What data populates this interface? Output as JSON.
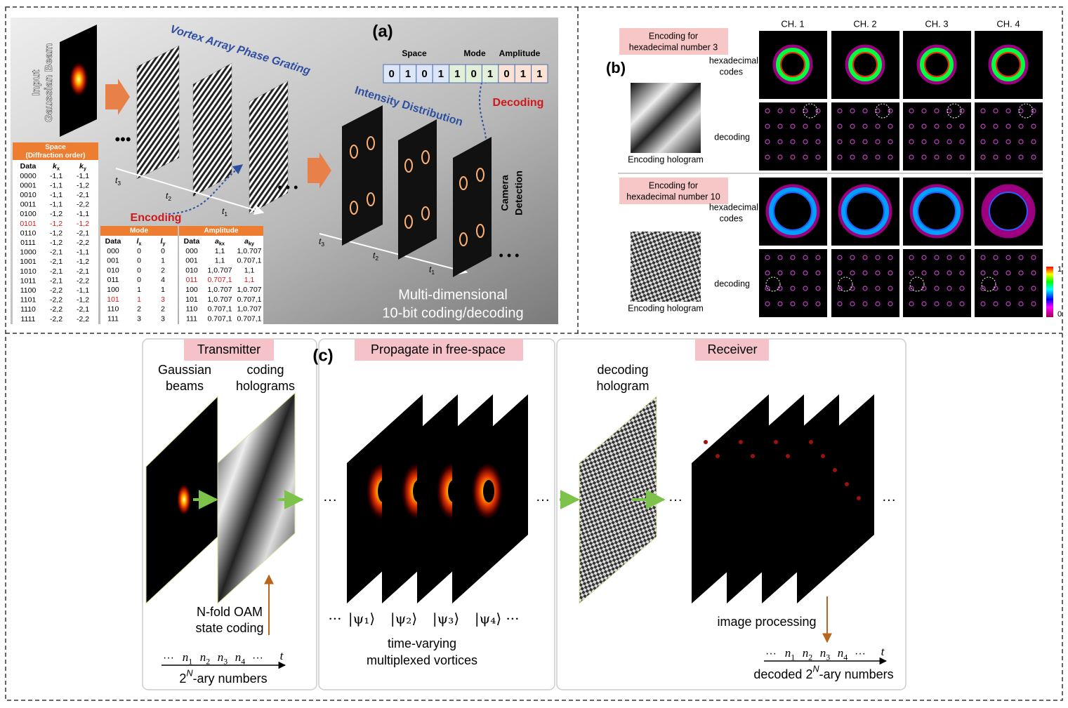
{
  "panel_a": {
    "label": "(a)",
    "input_label": [
      "Input",
      "Gaussian Beam"
    ],
    "grating_title": "Vortex Array Phase Grating",
    "intensity_title": "Intensity Distribution",
    "encoding": "Encoding",
    "decoding": "Decoding",
    "camera": [
      "Camera",
      "Detection"
    ],
    "code_groups": [
      {
        "name": "Space",
        "bits": [
          "0",
          "1",
          "0",
          "1"
        ]
      },
      {
        "name": "Mode",
        "bits": [
          "1",
          "0",
          "1"
        ]
      },
      {
        "name": "Amplitude",
        "bits": [
          "0",
          "1",
          "1"
        ]
      }
    ],
    "axis_left": [
      {
        "base": "t",
        "sub": "3"
      },
      {
        "base": "t",
        "sub": "2"
      },
      {
        "base": "t",
        "sub": "1"
      }
    ],
    "axis_right": [
      {
        "base": "t",
        "sub": "3"
      },
      {
        "base": "t",
        "sub": "2"
      },
      {
        "base": "t",
        "sub": "1"
      }
    ],
    "caption": [
      "Multi-dimensional",
      "10-bit coding/decoding"
    ],
    "space_table": {
      "title": [
        "Space",
        "(Diffraction order)"
      ],
      "header": [
        "Data",
        {
          "base": "k",
          "sub": "x"
        },
        {
          "base": "k",
          "sub": "y"
        }
      ],
      "highlight_row": 5,
      "rows": [
        [
          "0000",
          "-1,1",
          "-1,1"
        ],
        [
          "0001",
          "-1,1",
          "-1,2"
        ],
        [
          "0010",
          "-1,1",
          "-2,1"
        ],
        [
          "0011",
          "-1,1",
          "-2,2"
        ],
        [
          "0100",
          "-1,2",
          "-1,1"
        ],
        [
          "0101",
          "-1,2",
          "-1,2"
        ],
        [
          "0110",
          "-1,2",
          "-2,1"
        ],
        [
          "0111",
          "-1,2",
          "-2,2"
        ],
        [
          "1000",
          "-2,1",
          "-1,1"
        ],
        [
          "1001",
          "-2,1",
          "-1,2"
        ],
        [
          "1010",
          "-2,1",
          "-2,1"
        ],
        [
          "1011",
          "-2,1",
          "-2,2"
        ],
        [
          "1100",
          "-2,2",
          "-1,1"
        ],
        [
          "1101",
          "-2,2",
          "-1,2"
        ],
        [
          "1110",
          "-2,2",
          "-2,1"
        ],
        [
          "1111",
          "-2,2",
          "-2,2"
        ]
      ]
    },
    "mode_table": {
      "title": [
        "Mode"
      ],
      "header": [
        "Data",
        {
          "base": "l",
          "sub": "x"
        },
        {
          "base": "l",
          "sub": "y"
        }
      ],
      "highlight_row": 5,
      "rows": [
        [
          "000",
          "0",
          "0"
        ],
        [
          "001",
          "0",
          "1"
        ],
        [
          "010",
          "0",
          "2"
        ],
        [
          "011",
          "0",
          "4"
        ],
        [
          "100",
          "1",
          "1"
        ],
        [
          "101",
          "1",
          "3"
        ],
        [
          "110",
          "2",
          "2"
        ],
        [
          "111",
          "3",
          "3"
        ]
      ]
    },
    "amplitude_table": {
      "title": [
        "Amplitude"
      ],
      "header": [
        "Data",
        {
          "base": "a",
          "sub": "kx"
        },
        {
          "base": "a",
          "sub": "ky"
        }
      ],
      "highlight_row": 3,
      "rows": [
        [
          "000",
          "1,1",
          "1,0.707"
        ],
        [
          "001",
          "1,1",
          "0.707,1"
        ],
        [
          "010",
          "1,0.707",
          "1,1"
        ],
        [
          "011",
          "0.707,1",
          "1,1"
        ],
        [
          "100",
          "1,0.707",
          "1,0.707"
        ],
        [
          "101",
          "1,0.707",
          "0.707,1"
        ],
        [
          "110",
          "0.707,1",
          "1,0.707"
        ],
        [
          "111",
          "0.707,1",
          "0.707,1"
        ]
      ]
    }
  },
  "panel_b": {
    "label": "(b)",
    "channels": [
      "CH. 1",
      "CH. 2",
      "CH. 3",
      "CH. 4"
    ],
    "rows": [
      {
        "tag": [
          "Encoding for",
          "hexadecimal number 3"
        ],
        "code_label": [
          "hexadecimal",
          "codes"
        ],
        "decode_label": "decoding",
        "hologram_label": "Encoding hologram"
      },
      {
        "tag": [
          "Encoding for",
          "hexadecimal number 10"
        ],
        "code_label": [
          "hexadecimal",
          "codes"
        ],
        "decode_label": "decoding",
        "hologram_label": "Encoding hologram"
      }
    ],
    "colorbar": [
      "1",
      "0"
    ]
  },
  "panel_c": {
    "label": "(c)",
    "sections": [
      "Transmitter",
      "Propagate in free-space",
      "Receiver"
    ],
    "gaussian": [
      "Gaussian",
      "beams"
    ],
    "coding": [
      "coding",
      "holograms"
    ],
    "oam": [
      "N-fold OAM",
      "state coding"
    ],
    "tx_axis": {
      "dots": [
        "···",
        "···"
      ],
      "ticks": [
        {
          "base": "n",
          "sub": "1"
        },
        {
          "base": "n",
          "sub": "2"
        },
        {
          "base": "n",
          "sub": "3"
        },
        {
          "base": "n",
          "sub": "4"
        }
      ],
      "end": "t",
      "caption": {
        "base": "2",
        "sup": "N",
        "rest": "-ary numbers"
      }
    },
    "kets": [
      "···",
      "|ψ₁⟩",
      "|ψ₂⟩",
      "|ψ₃⟩",
      "|ψ₄⟩",
      "···"
    ],
    "vortex_caption": [
      "time-varying",
      "multiplexed vortices"
    ],
    "decoding": [
      "decoding",
      "hologram"
    ],
    "processing": "image processing",
    "rx_axis": {
      "dots": [
        "···",
        "···"
      ],
      "ticks": [
        {
          "base": "n",
          "sub": "1"
        },
        {
          "base": "n",
          "sub": "2"
        },
        {
          "base": "n",
          "sub": "3"
        },
        {
          "base": "n",
          "sub": "4"
        }
      ],
      "end": "t",
      "caption": {
        "pre": "decoded ",
        "base": "2",
        "sup": "N",
        "rest": "-ary numbers"
      }
    }
  }
}
